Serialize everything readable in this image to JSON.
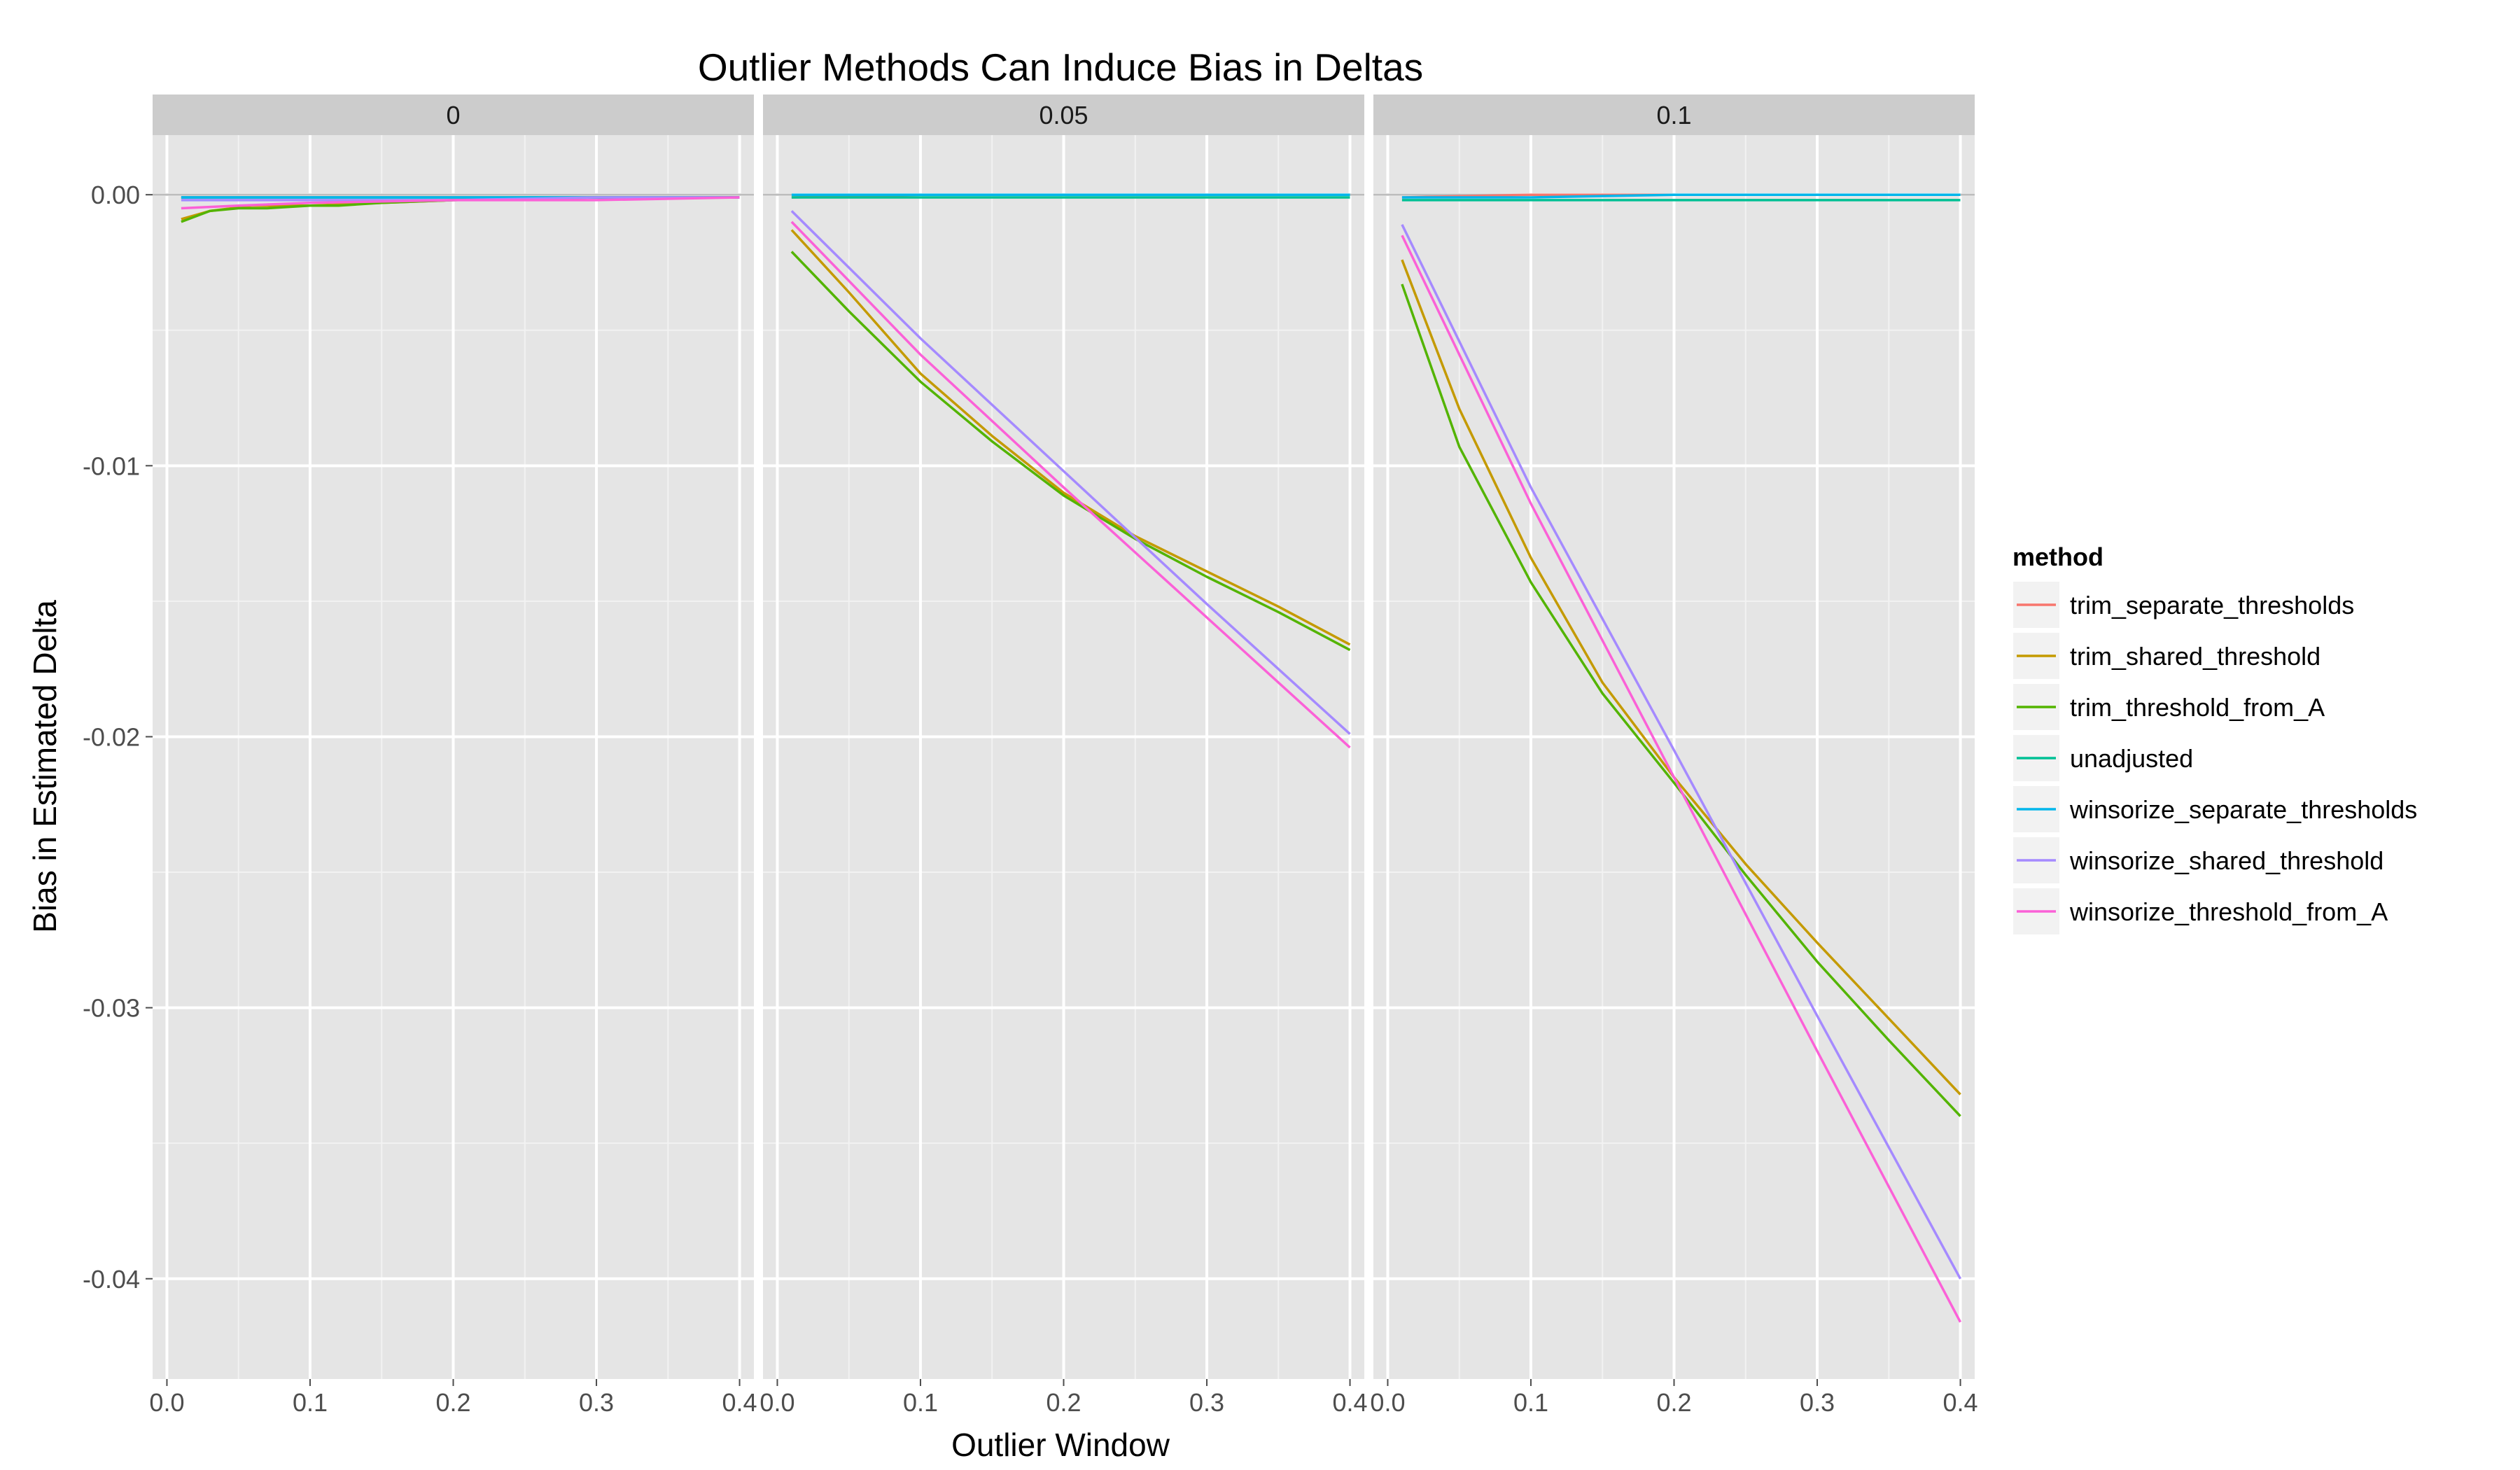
{
  "chart_data": {
    "type": "line",
    "title": "Outlier Methods Can Induce Bias in Deltas",
    "xlabel": "Outlier Window",
    "ylabel": "Bias in Estimated Delta",
    "xlim": [
      -0.01,
      0.41
    ],
    "ylim": [
      -0.0437,
      0.0022
    ],
    "x_ticks": [
      0.0,
      0.1,
      0.2,
      0.3,
      0.4
    ],
    "x_tick_labels": [
      "0.0",
      "0.1",
      "0.2",
      "0.3",
      "0.4"
    ],
    "y_ticks": [
      0.0,
      -0.01,
      -0.02,
      -0.03,
      -0.04
    ],
    "y_tick_labels": [
      "0.00",
      "-0.01",
      "-0.02",
      "-0.03",
      "-0.04"
    ],
    "grid": true,
    "legend": {
      "title": "method",
      "position": "right",
      "entries": [
        {
          "label": "trim_separate_thresholds",
          "color": "#F8766D"
        },
        {
          "label": "trim_shared_threshold",
          "color": "#C49A00"
        },
        {
          "label": "trim_threshold_from_A",
          "color": "#53B400"
        },
        {
          "label": "unadjusted",
          "color": "#00C094"
        },
        {
          "label": "winsorize_separate_thresholds",
          "color": "#00B6EB"
        },
        {
          "label": "winsorize_shared_threshold",
          "color": "#A58AFF"
        },
        {
          "label": "winsorize_threshold_from_A",
          "color": "#FB61D7"
        }
      ]
    },
    "panels": [
      {
        "label": "0",
        "series": [
          {
            "method": "trim_separate_thresholds",
            "x": [
              0.01,
              0.1,
              0.2,
              0.3,
              0.4
            ],
            "y": [
              -0.0001,
              -0.0001,
              -0.0001,
              -0.0001,
              -0.0001
            ]
          },
          {
            "method": "trim_shared_threshold",
            "x": [
              0.01,
              0.03,
              0.06,
              0.1,
              0.15,
              0.2,
              0.3,
              0.4
            ],
            "y": [
              -0.0009,
              -0.0006,
              -0.0004,
              -0.0004,
              -0.0003,
              -0.0002,
              -0.0001,
              -0.0001
            ]
          },
          {
            "method": "trim_threshold_from_A",
            "x": [
              0.01,
              0.02,
              0.03,
              0.05,
              0.07,
              0.1,
              0.12,
              0.15,
              0.2,
              0.3,
              0.4
            ],
            "y": [
              -0.001,
              -0.0008,
              -0.0006,
              -0.0005,
              -0.0005,
              -0.0004,
              -0.0004,
              -0.0003,
              -0.0002,
              -0.0001,
              -0.0001
            ]
          },
          {
            "method": "unadjusted",
            "x": [
              0.01,
              0.1,
              0.2,
              0.3,
              0.4
            ],
            "y": [
              -0.0001,
              -0.0001,
              -0.0001,
              -0.0001,
              -0.0001
            ]
          },
          {
            "method": "winsorize_separate_thresholds",
            "x": [
              0.01,
              0.05,
              0.1,
              0.2,
              0.3,
              0.4
            ],
            "y": [
              -0.0001,
              -0.0001,
              -0.0001,
              -0.0001,
              -0.0001,
              -0.0001
            ]
          },
          {
            "method": "winsorize_shared_threshold",
            "x": [
              0.01,
              0.1,
              0.2,
              0.3,
              0.4
            ],
            "y": [
              -0.0002,
              -0.0002,
              -0.0002,
              -0.0001,
              -0.0001
            ]
          },
          {
            "method": "winsorize_threshold_from_A",
            "x": [
              0.01,
              0.05,
              0.1,
              0.2,
              0.3,
              0.4
            ],
            "y": [
              -0.0005,
              -0.0004,
              -0.0003,
              -0.0002,
              -0.0002,
              -0.0001
            ]
          }
        ]
      },
      {
        "label": "0.05",
        "series": [
          {
            "method": "trim_separate_thresholds",
            "x": [
              0.01,
              0.1,
              0.2,
              0.3,
              0.4
            ],
            "y": [
              -0.0001,
              0.0,
              0.0,
              0.0,
              0.0
            ]
          },
          {
            "method": "trim_shared_threshold",
            "x": [
              0.01,
              0.05,
              0.1,
              0.15,
              0.2,
              0.25,
              0.3,
              0.35,
              0.4
            ],
            "y": [
              -0.0013,
              -0.0036,
              -0.0066,
              -0.0089,
              -0.011,
              -0.0126,
              -0.0139,
              -0.0152,
              -0.0166
            ]
          },
          {
            "method": "trim_threshold_from_A",
            "x": [
              0.01,
              0.05,
              0.1,
              0.15,
              0.2,
              0.25,
              0.3,
              0.35,
              0.4
            ],
            "y": [
              -0.0021,
              -0.0043,
              -0.0069,
              -0.0091,
              -0.0111,
              -0.0127,
              -0.0141,
              -0.0154,
              -0.0168
            ]
          },
          {
            "method": "unadjusted",
            "x": [
              0.01,
              0.1,
              0.2,
              0.3,
              0.4
            ],
            "y": [
              -0.0001,
              -0.0001,
              -0.0001,
              -0.0001,
              -0.0001
            ]
          },
          {
            "method": "winsorize_separate_thresholds",
            "x": [
              0.01,
              0.1,
              0.2,
              0.3,
              0.4
            ],
            "y": [
              0.0,
              0.0,
              0.0,
              0.0,
              0.0
            ]
          },
          {
            "method": "winsorize_shared_threshold",
            "x": [
              0.01,
              0.1,
              0.2,
              0.3,
              0.4
            ],
            "y": [
              -0.0006,
              -0.0053,
              -0.0102,
              -0.0151,
              -0.0199
            ]
          },
          {
            "method": "winsorize_threshold_from_A",
            "x": [
              0.01,
              0.1,
              0.2,
              0.3,
              0.4
            ],
            "y": [
              -0.001,
              -0.0059,
              -0.0108,
              -0.0156,
              -0.0204
            ]
          }
        ]
      },
      {
        "label": "0.1",
        "series": [
          {
            "method": "trim_separate_thresholds",
            "x": [
              0.01,
              0.1,
              0.2,
              0.3,
              0.4
            ],
            "y": [
              -0.0001,
              0.0,
              0.0,
              0.0,
              0.0
            ]
          },
          {
            "method": "trim_shared_threshold",
            "x": [
              0.01,
              0.05,
              0.1,
              0.15,
              0.2,
              0.25,
              0.3,
              0.35,
              0.4
            ],
            "y": [
              -0.0024,
              -0.0079,
              -0.0134,
              -0.018,
              -0.0215,
              -0.0247,
              -0.0276,
              -0.0304,
              -0.0332
            ]
          },
          {
            "method": "trim_threshold_from_A",
            "x": [
              0.01,
              0.05,
              0.1,
              0.15,
              0.2,
              0.25,
              0.3,
              0.35,
              0.4
            ],
            "y": [
              -0.0033,
              -0.0093,
              -0.0143,
              -0.0184,
              -0.0217,
              -0.0251,
              -0.0283,
              -0.0312,
              -0.034
            ]
          },
          {
            "method": "unadjusted",
            "x": [
              0.01,
              0.1,
              0.2,
              0.3,
              0.4
            ],
            "y": [
              -0.0002,
              -0.0002,
              -0.0002,
              -0.0002,
              -0.0002
            ]
          },
          {
            "method": "winsorize_separate_thresholds",
            "x": [
              0.01,
              0.1,
              0.2,
              0.3,
              0.4
            ],
            "y": [
              -0.0001,
              -0.0001,
              0.0,
              0.0,
              0.0
            ]
          },
          {
            "method": "winsorize_shared_threshold",
            "x": [
              0.01,
              0.1,
              0.2,
              0.3,
              0.4
            ],
            "y": [
              -0.0011,
              -0.0108,
              -0.0205,
              -0.0303,
              -0.04
            ]
          },
          {
            "method": "winsorize_threshold_from_A",
            "x": [
              0.01,
              0.1,
              0.2,
              0.3,
              0.4
            ],
            "y": [
              -0.0015,
              -0.0114,
              -0.0215,
              -0.0316,
              -0.0416
            ]
          }
        ]
      }
    ]
  }
}
